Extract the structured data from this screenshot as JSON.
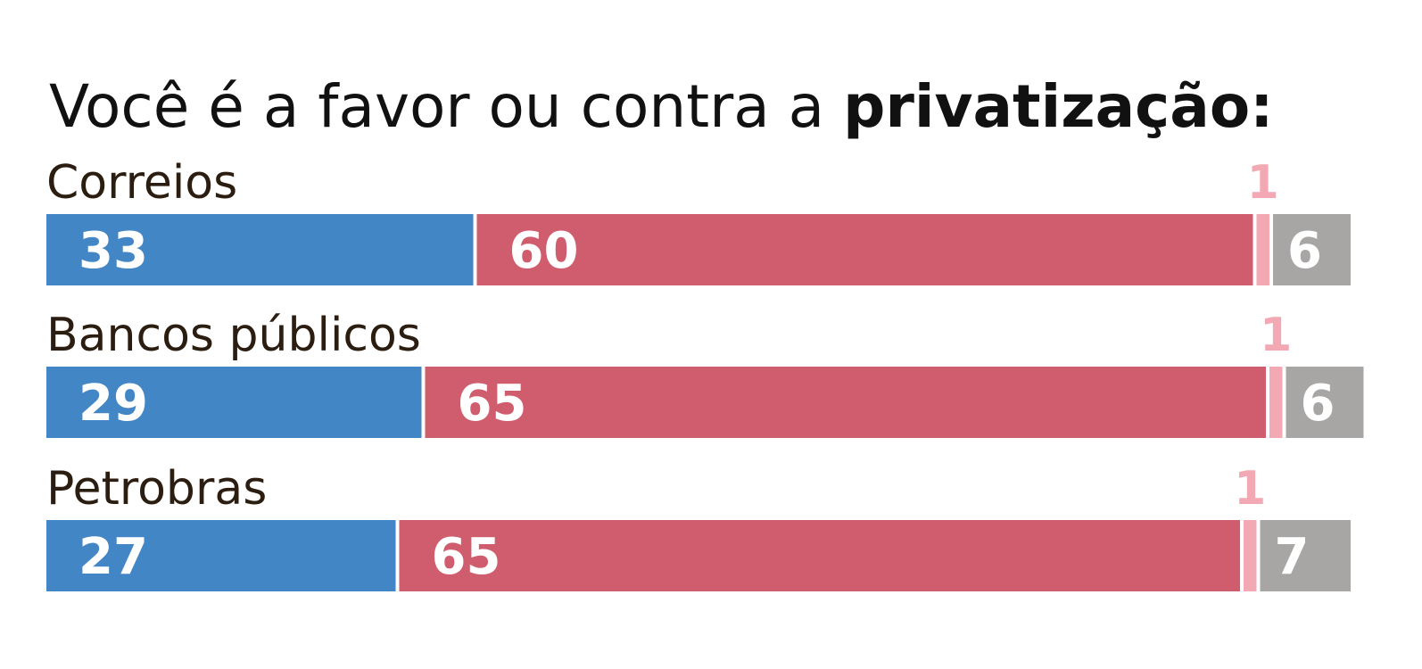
{
  "title": {
    "regular": "Você é a favor ou contra a ",
    "bold": "privatização:"
  },
  "chart_data": {
    "type": "bar",
    "orientation": "horizontal-stacked-100",
    "title": "Você é a favor ou contra a privatização:",
    "categories": [
      "Correios",
      "Bancos públicos",
      "Petrobras"
    ],
    "series": [
      {
        "values": [
          33,
          29,
          27
        ],
        "color": "#4286c6"
      },
      {
        "values": [
          60,
          65,
          65
        ],
        "color": "#d05d6d"
      },
      {
        "values": [
          1,
          1,
          1
        ],
        "color": "#f3a9b3"
      },
      {
        "values": [
          6,
          6,
          7
        ],
        "color": "#a8a5a5"
      }
    ],
    "grid": false,
    "legend": "none"
  }
}
